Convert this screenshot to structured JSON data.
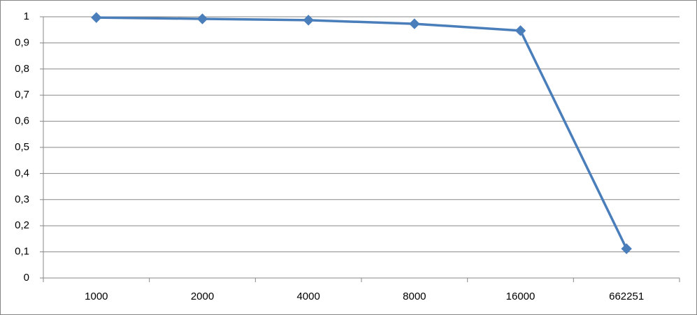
{
  "chart_data": {
    "type": "line",
    "categories": [
      "1000",
      "2000",
      "4000",
      "8000",
      "16000",
      "662251"
    ],
    "values": [
      0.997,
      0.992,
      0.987,
      0.973,
      0.947,
      0.112
    ],
    "color": "#4a7ebb",
    "ylim": [
      0,
      1
    ],
    "yticks": [
      0,
      {
        "value": 0.1,
        "label": "0,1"
      },
      {
        "value": 0.2,
        "label": "0,2"
      },
      {
        "value": 0.3,
        "label": "0,3"
      },
      {
        "value": 0.4,
        "label": "0,4"
      },
      {
        "value": 0.5,
        "label": "0,5"
      },
      {
        "value": 0.6,
        "label": "0,6"
      },
      {
        "value": 0.7,
        "label": "0,7"
      },
      {
        "value": 0.8,
        "label": "0,8"
      },
      {
        "value": 0.9,
        "label": "0,9"
      },
      1
    ],
    "grid": true
  }
}
